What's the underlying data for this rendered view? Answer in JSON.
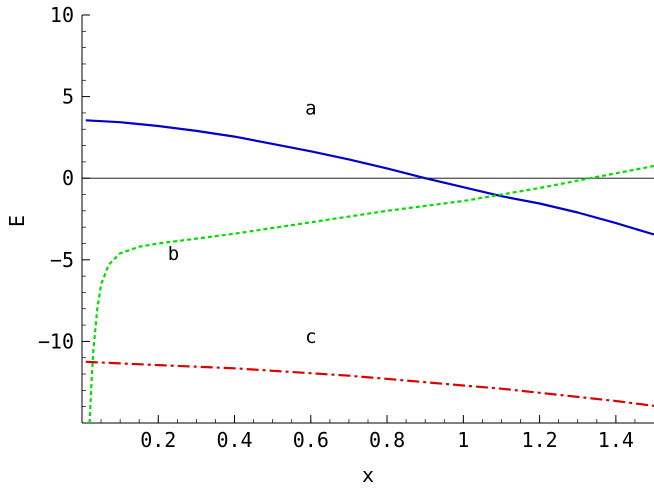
{
  "chart_data": {
    "type": "line",
    "title": "",
    "xlabel": "x",
    "ylabel": "E",
    "xlim": [
      0,
      1.5
    ],
    "ylim": [
      -15,
      10
    ],
    "x_ticks": [
      0.2,
      0.4,
      0.6,
      0.8,
      1,
      1.2,
      1.4
    ],
    "x_tick_labels": [
      "0.2",
      "0.4",
      "0.6",
      "0.8",
      "1",
      "1.2",
      "1.4"
    ],
    "y_ticks": [
      10,
      5,
      0,
      -5,
      -10
    ],
    "y_tick_labels": [
      "10",
      "5",
      "0",
      "-5",
      "-10"
    ],
    "grid": false,
    "zero_line": true,
    "series": [
      {
        "name": "a",
        "color": "#0000cc",
        "style": "solid",
        "x": [
          0.01,
          0.1,
          0.2,
          0.3,
          0.4,
          0.5,
          0.6,
          0.7,
          0.8,
          0.9,
          1.0,
          1.1,
          1.2,
          1.3,
          1.4,
          1.5
        ],
        "y": [
          3.55,
          3.43,
          3.2,
          2.9,
          2.55,
          2.1,
          1.65,
          1.15,
          0.6,
          0.0,
          -0.55,
          -1.1,
          -1.55,
          -2.1,
          -2.75,
          -3.45
        ]
      },
      {
        "name": "b",
        "color": "#00dd00",
        "style": "dotted",
        "x": [
          0.02,
          0.025,
          0.03,
          0.04,
          0.05,
          0.07,
          0.1,
          0.15,
          0.2,
          0.3,
          0.4,
          0.6,
          0.8,
          1.0,
          1.1,
          1.2,
          1.3,
          1.4,
          1.5
        ],
        "y": [
          -15,
          -12.5,
          -10.5,
          -8,
          -6.5,
          -5.3,
          -4.6,
          -4.2,
          -4.0,
          -3.7,
          -3.4,
          -2.7,
          -2.0,
          -1.4,
          -1.0,
          -0.6,
          -0.15,
          0.3,
          0.75
        ]
      },
      {
        "name": "c",
        "color": "#dd0000",
        "style": "dash-dot",
        "x": [
          0.01,
          0.1,
          0.2,
          0.3,
          0.4,
          0.5,
          0.6,
          0.7,
          0.8,
          0.9,
          1.0,
          1.1,
          1.2,
          1.3,
          1.4,
          1.5
        ],
        "y": [
          -11.25,
          -11.35,
          -11.45,
          -11.55,
          -11.65,
          -11.8,
          -11.95,
          -12.1,
          -12.3,
          -12.5,
          -12.7,
          -12.9,
          -13.15,
          -13.4,
          -13.65,
          -13.95
        ]
      }
    ],
    "annotations": [
      {
        "text": "a",
        "x": 0.6,
        "y": 3.9
      },
      {
        "text": "b",
        "x": 0.24,
        "y": -5.0
      },
      {
        "text": "c",
        "x": 0.6,
        "y": -10.1
      }
    ]
  }
}
